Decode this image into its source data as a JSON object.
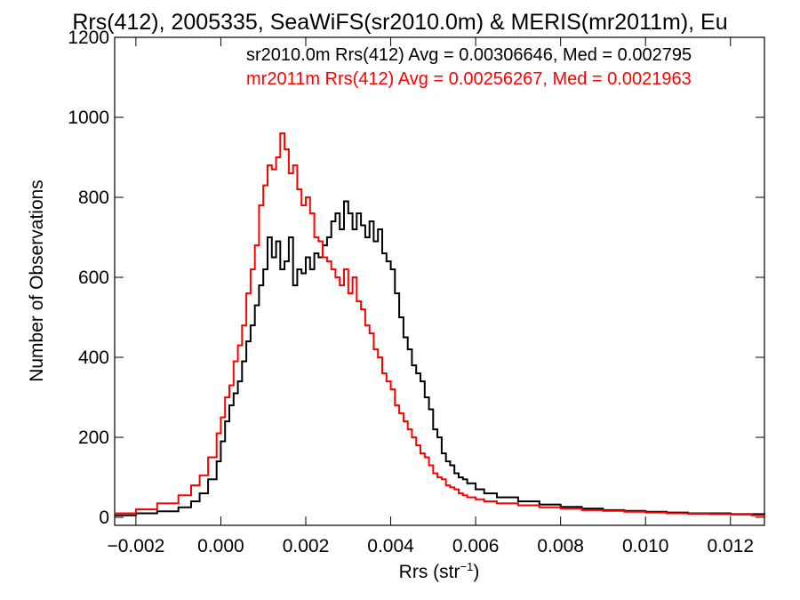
{
  "chart_data": {
    "type": "line",
    "title": "Rrs(412), 2005335, SeaWiFS(sr2010.0m) & MERIS(mr2011m), Eu",
    "xlabel": "Rrs (str",
    "xlabel_sup": "−1",
    "xlabel_close": ")",
    "ylabel": "Number of Observations",
    "xlim": [
      -0.0025,
      0.0128
    ],
    "ylim": [
      -20,
      1200
    ],
    "x_ticks": [
      -0.002,
      0.0,
      0.002,
      0.004,
      0.006,
      0.008,
      0.01,
      0.012
    ],
    "x_tick_labels": [
      "−0.002",
      "0.000",
      "0.002",
      "0.004",
      "0.006",
      "0.008",
      "0.010",
      "0.012"
    ],
    "y_ticks": [
      0,
      200,
      400,
      600,
      800,
      1000,
      1200
    ],
    "y_tick_labels": [
      "0",
      "200",
      "400",
      "600",
      "800",
      "1000",
      "1200"
    ],
    "series": [
      {
        "name": "sr2010.0m Rrs(412) Avg = 0.00306646, Med = 0.002795",
        "color": "#000000",
        "x": [
          -0.0025,
          -0.002,
          -0.0015,
          -0.001,
          -0.0007,
          -0.0005,
          -0.0003,
          -0.0001,
          0.0,
          0.0001,
          0.0002,
          0.0003,
          0.0004,
          0.0005,
          0.0006,
          0.0007,
          0.0008,
          0.0009,
          0.001,
          0.0011,
          0.0012,
          0.0013,
          0.0014,
          0.0015,
          0.0016,
          0.0017,
          0.0018,
          0.0019,
          0.002,
          0.0021,
          0.0022,
          0.0023,
          0.0024,
          0.0025,
          0.0026,
          0.0027,
          0.0028,
          0.0029,
          0.003,
          0.0031,
          0.0032,
          0.0033,
          0.0034,
          0.0035,
          0.0036,
          0.0037,
          0.0038,
          0.0039,
          0.004,
          0.0041,
          0.0042,
          0.0043,
          0.0044,
          0.0045,
          0.0046,
          0.0047,
          0.0048,
          0.0049,
          0.005,
          0.0051,
          0.0052,
          0.0053,
          0.0054,
          0.0055,
          0.0056,
          0.0057,
          0.0058,
          0.006,
          0.0062,
          0.0065,
          0.007,
          0.0075,
          0.008,
          0.0085,
          0.009,
          0.0095,
          0.01,
          0.0105,
          0.011,
          0.0115,
          0.012,
          0.0125,
          0.0128
        ],
        "values": [
          5,
          10,
          15,
          25,
          40,
          60,
          95,
          140,
          190,
          240,
          280,
          310,
          340,
          390,
          440,
          480,
          530,
          580,
          620,
          700,
          650,
          690,
          620,
          640,
          700,
          580,
          620,
          610,
          650,
          620,
          660,
          650,
          680,
          700,
          740,
          760,
          720,
          790,
          760,
          720,
          760,
          730,
          700,
          740,
          690,
          720,
          660,
          640,
          620,
          560,
          500,
          450,
          420,
          380,
          360,
          340,
          300,
          270,
          220,
          200,
          160,
          140,
          130,
          110,
          100,
          95,
          85,
          70,
          60,
          50,
          40,
          32,
          26,
          22,
          18,
          16,
          14,
          12,
          10,
          10,
          8,
          8,
          5
        ]
      },
      {
        "name": "mr2011m Rrs(412) Avg = 0.00256267, Med = 0.0021963",
        "color": "#ff0000",
        "x": [
          -0.0025,
          -0.002,
          -0.0015,
          -0.001,
          -0.0007,
          -0.0005,
          -0.0003,
          -0.0001,
          0.0,
          0.0001,
          0.0002,
          0.0003,
          0.0004,
          0.0005,
          0.0006,
          0.0007,
          0.0008,
          0.0009,
          0.001,
          0.0011,
          0.0012,
          0.0013,
          0.0014,
          0.0015,
          0.0016,
          0.0017,
          0.0018,
          0.0019,
          0.002,
          0.0021,
          0.0022,
          0.0023,
          0.0024,
          0.0025,
          0.0026,
          0.0027,
          0.0028,
          0.0029,
          0.003,
          0.0031,
          0.0032,
          0.0033,
          0.0034,
          0.0035,
          0.0036,
          0.0037,
          0.0038,
          0.0039,
          0.004,
          0.0041,
          0.0042,
          0.0043,
          0.0044,
          0.0045,
          0.0046,
          0.0047,
          0.0048,
          0.0049,
          0.005,
          0.0051,
          0.0052,
          0.0053,
          0.0054,
          0.0055,
          0.0056,
          0.0057,
          0.0058,
          0.006,
          0.0062,
          0.0065,
          0.007,
          0.0075,
          0.008,
          0.0085,
          0.009,
          0.0095,
          0.01,
          0.0105,
          0.011,
          0.0115,
          0.012,
          0.0125,
          0.0128
        ],
        "values": [
          10,
          20,
          35,
          55,
          80,
          105,
          150,
          210,
          250,
          300,
          330,
          390,
          430,
          480,
          560,
          620,
          680,
          780,
          830,
          880,
          870,
          900,
          960,
          920,
          860,
          880,
          820,
          780,
          800,
          760,
          700,
          690,
          650,
          640,
          620,
          600,
          580,
          620,
          560,
          600,
          540,
          520,
          480,
          460,
          420,
          400,
          360,
          340,
          320,
          280,
          260,
          240,
          220,
          200,
          180,
          160,
          150,
          130,
          110,
          100,
          95,
          80,
          75,
          70,
          60,
          55,
          50,
          45,
          40,
          35,
          30,
          25,
          22,
          18,
          16,
          14,
          12,
          10,
          9,
          8,
          7,
          5,
          4
        ]
      }
    ]
  }
}
